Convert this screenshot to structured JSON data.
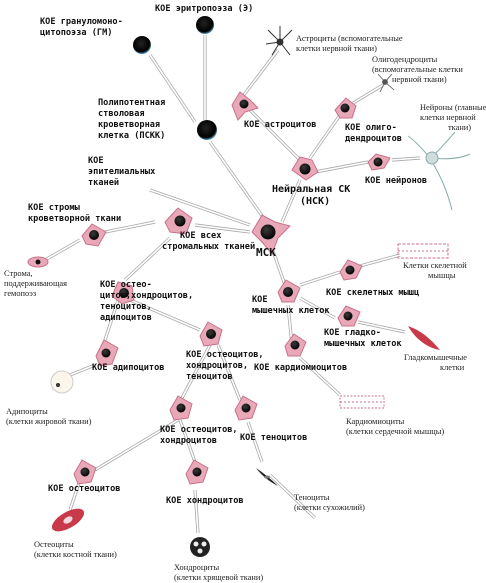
{
  "labels": {
    "koe_eritropoeza": "КОЕ эритропоэза (Э)",
    "koe_gm_1": "КОЕ грануломоно-",
    "koe_gm_2": "цитопоэза (ГМ)",
    "psk_1": "Полипотентная",
    "psk_2": "стволовая",
    "psk_3": "кроветворная",
    "psk_4": "клетка (ПСКК)",
    "koe_epit_1": "КОЕ",
    "koe_epit_2": "эпителиальных",
    "koe_epit_3": "тканей",
    "koe_stroma_1": "КОЕ стромы",
    "koe_stroma_2": "кроветворной ткани",
    "koe_all_1": "КОЕ всех",
    "koe_all_2": "стромальных тканей",
    "msk": "МСК",
    "koe_astro": "КОЕ астроцитов",
    "koe_oligo_1": "КОЕ олиго-",
    "koe_oligo_2": "дендроцитов",
    "nsk_1": "Нейральная СК",
    "nsk_2": "(НСК)",
    "koe_neuron": "КОЕ нейронов",
    "koe_osteo_1": "КОЕ остео-",
    "koe_osteo_2": "цитов,хондроцитов,",
    "koe_osteo_3": "теноцитов,",
    "koe_osteo_4": "адипоцитов",
    "koe_muscle_1": "КОЕ",
    "koe_muscle_2": "мышечных клеток",
    "koe_skel": "КОЕ скелетных мышц",
    "koe_smooth": "КОЕ гладко-",
    "koe_smooth_2": "мышечных клеток",
    "koe_cardio": "КОЕ кардиомиоцитов",
    "koe_adipo": "КОЕ адипоцитов",
    "koe_oht_1": "КОЕ остеоцитов,",
    "koe_oht_2": "хондроцитов,",
    "koe_oht_3": "теноцитов",
    "koe_oh_1": "КОЕ остеоцитов,",
    "koe_oh_2": "хондроцитов",
    "koe_teno": "КОЕ теноцитов",
    "koe_osteocyte": "КОЕ остеоцитов",
    "koe_chondro": "КОЕ хондроцитов"
  },
  "captions": {
    "astro_1": "Астроциты (вспомогательные",
    "astro_2": "клетки нервной ткани)",
    "oligo_1": "Олигодендроциты",
    "oligo_2": "(вспомогательные клетки",
    "oligo_3": "нервной ткани)",
    "neuron_1": "Нейроны (главные",
    "neuron_2": "клетки нервной",
    "neuron_3": "ткани)",
    "stroma_1": "Строма,",
    "stroma_2": "поддерживающая",
    "stroma_3": "гемопоэз",
    "skel_1": "Клетки скелетной",
    "skel_2": "мышцы",
    "smooth_1": "Гладкомышечные",
    "smooth_2": "клетки",
    "cardio_1": "Кардиомиоциты",
    "cardio_2": "(клетки сердечной мышцы)",
    "adipo_1": "Адипоциты",
    "adipo_2": "(клетки жировой ткани)",
    "teno_1": "Теноциты",
    "teno_2": "(клетки сухожилий)",
    "osteo_1": "Остеоциты",
    "osteo_2": "(клетки костной ткани)",
    "chondro_1": "Хондроциты",
    "chondro_2": "(клетки хрящевой ткани)"
  },
  "colors": {
    "cell_body": "#e8a8b8",
    "cell_edge": "#c9708a",
    "nucleus": "#111111",
    "arrow": "#aaaaaa",
    "muscle_red": "#c83a4a"
  }
}
